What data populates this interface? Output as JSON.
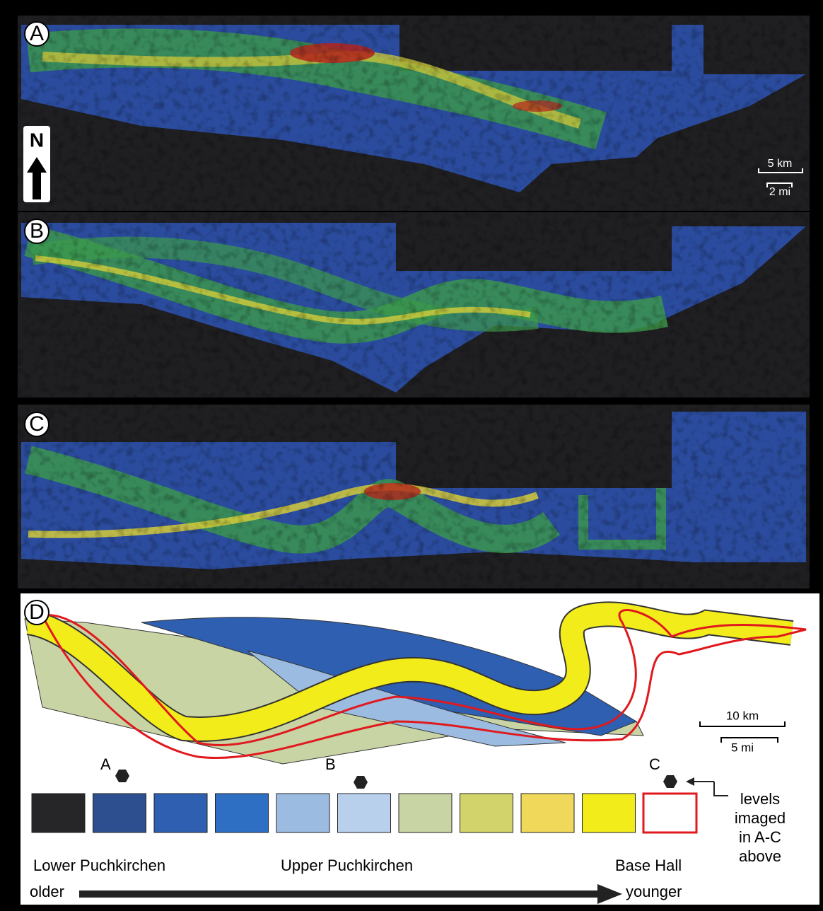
{
  "panels": {
    "a": {
      "label": "A"
    },
    "b": {
      "label": "B"
    },
    "c": {
      "label": "C"
    },
    "d": {
      "label": "D"
    }
  },
  "north": "N",
  "scale_top": {
    "km": "5 km",
    "mi": "2 mi"
  },
  "scale_d": {
    "km": "10 km",
    "mi": "5 mi"
  },
  "legend": {
    "markers": [
      "A",
      "B",
      "C"
    ],
    "note": [
      "levels",
      "imaged",
      "in A-C",
      "above"
    ],
    "groups": {
      "lower": "Lower Puchkirchen",
      "upper": "Upper Puchkirchen",
      "base": "Base Hall"
    },
    "older": "older",
    "younger": "younger"
  }
}
